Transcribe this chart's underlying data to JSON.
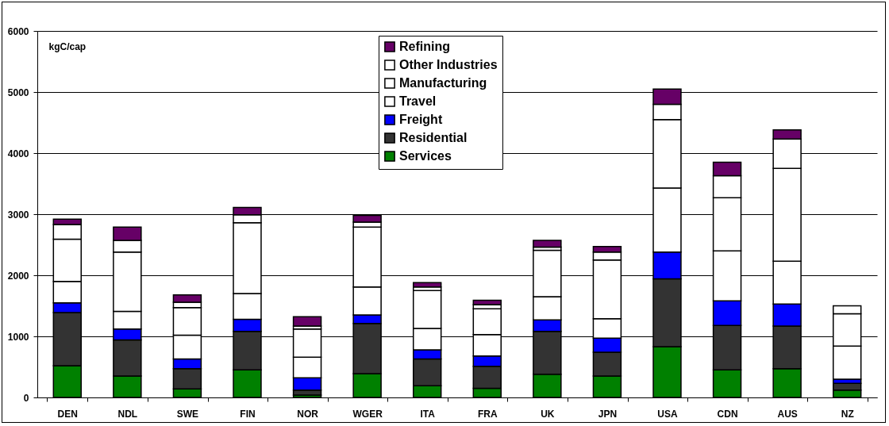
{
  "chart_data": {
    "type": "bar",
    "stacked": true,
    "ylabel": "kgC/cap",
    "categories": [
      "DEN",
      "NDL",
      "SWE",
      "FIN",
      "NOR",
      "WGER",
      "ITA",
      "FRA",
      "UK",
      "JPN",
      "USA",
      "CDN",
      "AUS",
      "NZ"
    ],
    "series": [
      {
        "name": "Services",
        "color": "#008000",
        "values": [
          520,
          350,
          140,
          450,
          40,
          390,
          190,
          150,
          380,
          350,
          830,
          450,
          470,
          120
        ]
      },
      {
        "name": "Residential",
        "color": "#333333",
        "values": [
          870,
          590,
          330,
          630,
          80,
          820,
          440,
          360,
          700,
          390,
          1110,
          730,
          700,
          110
        ]
      },
      {
        "name": "Freight",
        "color": "#0000ff",
        "values": [
          160,
          180,
          160,
          200,
          200,
          140,
          150,
          170,
          190,
          230,
          440,
          400,
          360,
          70
        ]
      },
      {
        "name": "Travel",
        "color": "#ffffff",
        "values": [
          350,
          290,
          390,
          420,
          340,
          460,
          350,
          350,
          380,
          320,
          1050,
          820,
          700,
          540
        ]
      },
      {
        "name": "Manufacturing",
        "color": "#ffffff",
        "values": [
          690,
          970,
          450,
          1160,
          460,
          980,
          620,
          420,
          760,
          960,
          1120,
          870,
          1520,
          530
        ]
      },
      {
        "name": "Other Industries",
        "color": "#ffffff",
        "values": [
          240,
          190,
          90,
          130,
          50,
          80,
          60,
          70,
          50,
          130,
          250,
          360,
          480,
          130
        ]
      },
      {
        "name": "Refining",
        "color": "#660066",
        "values": [
          90,
          220,
          120,
          120,
          150,
          110,
          70,
          70,
          110,
          90,
          250,
          220,
          150,
          null
        ]
      }
    ],
    "ylim": [
      0,
      6000
    ],
    "yticks": [
      0,
      1000,
      2000,
      3000,
      4000,
      5000,
      6000
    ],
    "grid": "y",
    "legend": "top"
  }
}
